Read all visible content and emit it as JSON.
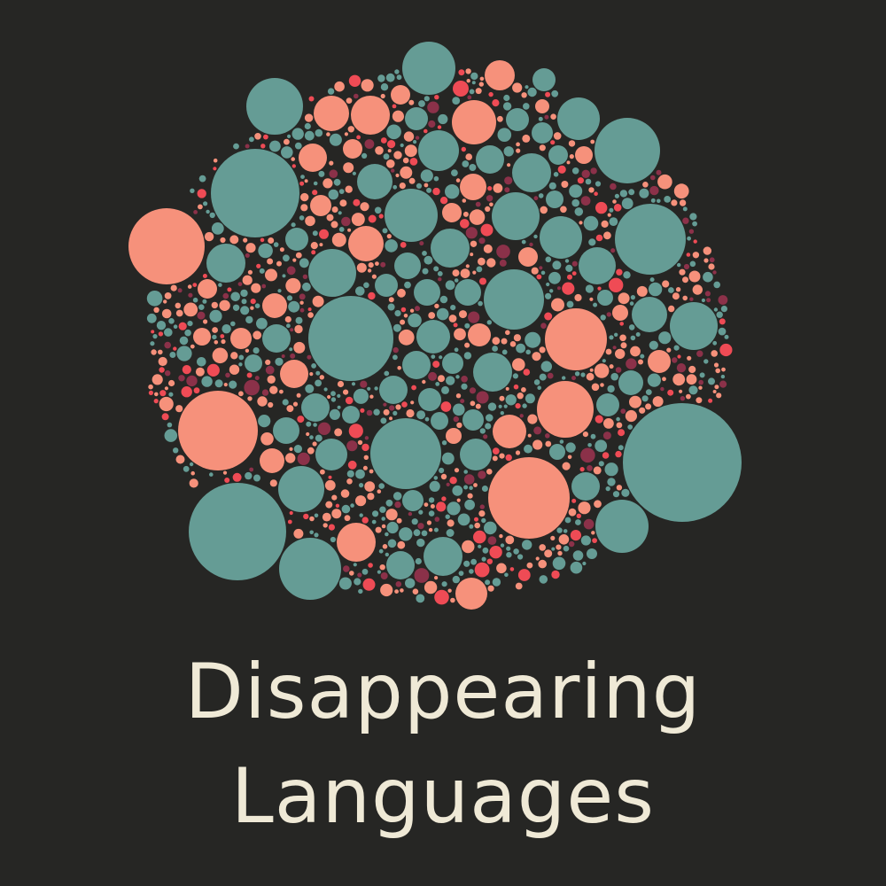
{
  "title": {
    "line1": "Disappearing",
    "line2": "Languages"
  },
  "colors": {
    "background": "#262624",
    "text": "#efe9d6",
    "teal": "#659c95",
    "salmon": "#f6917b",
    "red": "#ef4b55",
    "maroon": "#8b3149"
  }
}
